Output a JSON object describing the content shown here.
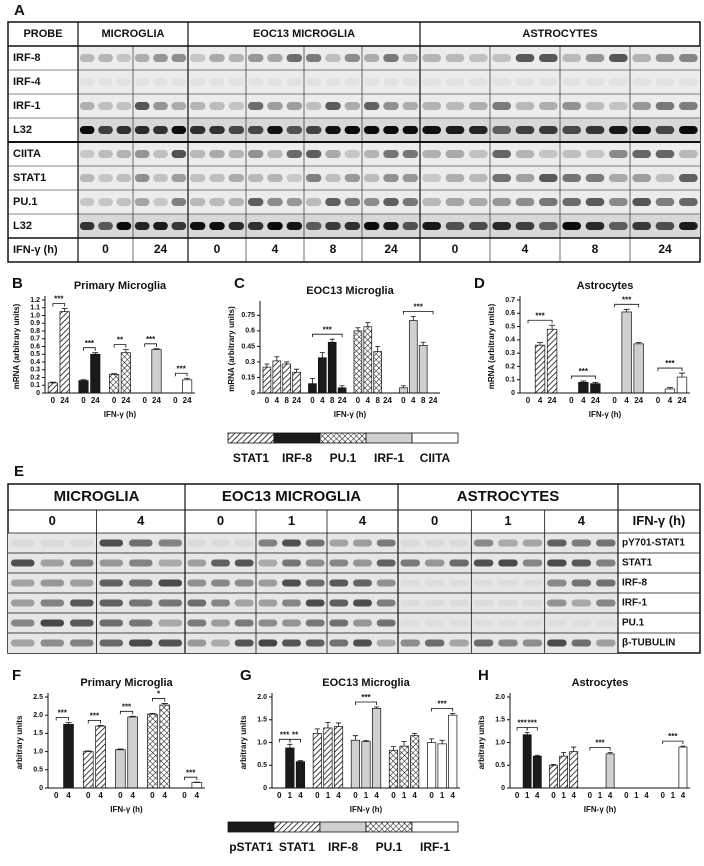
{
  "figure": {
    "blot_a": {
      "panel": "A",
      "probe_header": "PROBE",
      "cell_types": [
        "MICROGLIA",
        "EOC13 MICROGLIA",
        "ASTROCYTES"
      ],
      "probes": [
        "IRF-8",
        "IRF-4",
        "IRF-1",
        "L32",
        "CIITA",
        "STAT1",
        "PU.1",
        "L32"
      ],
      "time_label": "IFN-γ (h)",
      "times": [
        [
          "0",
          "24"
        ],
        [
          "0",
          "4",
          "8",
          "24"
        ],
        [
          "0",
          "4",
          "8",
          "24"
        ]
      ]
    },
    "blot_e": {
      "panel": "E",
      "cell_types": [
        "MICROGLIA",
        "EOC13 MICROGLIA",
        "ASTROCYTES"
      ],
      "time_label": "IFN-γ (h)",
      "times": [
        [
          "0",
          "4"
        ],
        [
          "0",
          "1",
          "4"
        ],
        [
          "0",
          "1",
          "4"
        ]
      ],
      "proteins": [
        "pY701-STAT1",
        "STAT1",
        "IRF-8",
        "IRF-1",
        "PU.1",
        "β-TUBULIN"
      ]
    },
    "legend_mrna": {
      "items": [
        {
          "name": "STAT1",
          "fill": "diagonal"
        },
        {
          "name": "IRF-8",
          "fill": "#1a1a1a"
        },
        {
          "name": "PU.1",
          "fill": "crosshatch"
        },
        {
          "name": "IRF-1",
          "fill": "#d0d0d0"
        },
        {
          "name": "CIITA",
          "fill": "#ffffff"
        }
      ]
    },
    "legend_protein": {
      "items": [
        {
          "name": "pSTAT1",
          "fill": "#1a1a1a"
        },
        {
          "name": "STAT1",
          "fill": "diagonal"
        },
        {
          "name": "IRF-8",
          "fill": "#d0d0d0"
        },
        {
          "name": "PU.1",
          "fill": "crosshatch"
        },
        {
          "name": "IRF-1",
          "fill": "#ffffff"
        }
      ]
    }
  },
  "chart_data": [
    {
      "type": "bar",
      "panel": "B",
      "title": "Primary Microglia",
      "ylabel": "mRNA (arbitrary units)",
      "xlabel": "IFN-γ (h)",
      "ylim": [
        0,
        1.2
      ],
      "yticks": [
        0,
        0.1,
        0.2,
        0.3,
        0.4,
        0.5,
        0.6,
        0.7,
        0.8,
        0.9,
        {
          "value": 1,
          "label": "1.0"
        },
        1.1,
        1.2
      ],
      "series": [
        {
          "fill": "diagonal",
          "categories": [
            "0",
            "24"
          ],
          "values": [
            0.13,
            1.05
          ],
          "errors": [
            0.01,
            0.04
          ],
          "significance": [
            "***"
          ]
        },
        {
          "fill": "#1a1a1a",
          "categories": [
            "0",
            "24"
          ],
          "values": [
            0.16,
            0.5
          ],
          "errors": [
            0.01,
            0.02
          ],
          "significance": [
            "***"
          ]
        },
        {
          "fill": "crosshatch",
          "categories": [
            "0",
            "24"
          ],
          "values": [
            0.24,
            0.52
          ],
          "errors": [
            0.01,
            0.04
          ],
          "significance": [
            "**"
          ]
        },
        {
          "fill": "#d0d0d0",
          "categories": [
            "0",
            "24"
          ],
          "values": [
            null,
            0.56
          ],
          "errors": [
            null,
            0.01
          ],
          "significance": [
            "***"
          ]
        },
        {
          "fill": "#ffffff",
          "categories": [
            "0",
            "24"
          ],
          "values": [
            null,
            0.17
          ],
          "errors": [
            null,
            0.02
          ],
          "significance": [
            "***"
          ]
        }
      ]
    },
    {
      "type": "bar",
      "panel": "C",
      "title": "EOC13 Microglia",
      "ylabel": "mRNA (arbitrary units)",
      "xlabel": "IFN-γ (h)",
      "ylim": [
        0,
        0.85
      ],
      "yticks": [
        0,
        0.15,
        0.3,
        0.45,
        0.6,
        0.75
      ],
      "series": [
        {
          "fill": "diagonal",
          "categories": [
            "0",
            "4",
            "8",
            "24"
          ],
          "values": [
            0.25,
            0.31,
            0.28,
            0.2
          ],
          "errors": [
            0.03,
            0.04,
            0.02,
            0.03
          ]
        },
        {
          "fill": "#1a1a1a",
          "categories": [
            "0",
            "4",
            "8",
            "24"
          ],
          "values": [
            0.09,
            0.34,
            0.49,
            0.05
          ],
          "errors": [
            0.05,
            0.05,
            0.03,
            0.02
          ],
          "significance": [
            "***"
          ]
        },
        {
          "fill": "crosshatch",
          "categories": [
            "0",
            "4",
            "8",
            "24"
          ],
          "values": [
            0.6,
            0.64,
            0.4,
            null
          ],
          "errors": [
            0.03,
            0.04,
            0.05,
            null
          ]
        },
        {
          "fill": "#d0d0d0",
          "categories": [
            "0",
            "4",
            "8",
            "24"
          ],
          "values": [
            0.05,
            0.7,
            0.46,
            null
          ],
          "errors": [
            0.02,
            0.04,
            0.03,
            null
          ],
          "significance": [
            "***"
          ]
        }
      ]
    },
    {
      "type": "bar",
      "panel": "D",
      "title": "Astrocytes",
      "ylabel": "mRNA (arbitrary units)",
      "xlabel": "IFN-γ (h)",
      "ylim": [
        0,
        0.7
      ],
      "yticks": [
        0,
        0.1,
        0.2,
        0.3,
        0.4,
        0.5,
        0.6,
        0.7
      ],
      "series": [
        {
          "fill": "diagonal",
          "categories": [
            "0",
            "4",
            "24"
          ],
          "values": [
            null,
            0.36,
            0.48
          ],
          "errors": [
            null,
            0.02,
            0.03
          ],
          "significance": [
            "***"
          ]
        },
        {
          "fill": "#1a1a1a",
          "categories": [
            "0",
            "4",
            "24"
          ],
          "values": [
            null,
            0.08,
            0.07
          ],
          "errors": [
            null,
            0.01,
            0.01
          ],
          "significance": [
            "***"
          ]
        },
        {
          "fill": "#d0d0d0",
          "categories": [
            "0",
            "4",
            "24"
          ],
          "values": [
            null,
            0.61,
            0.37
          ],
          "errors": [
            null,
            0.02,
            0.01
          ],
          "significance": [
            "***"
          ]
        },
        {
          "fill": "#ffffff",
          "categories": [
            "0",
            "4",
            "24"
          ],
          "values": [
            null,
            0.03,
            0.12
          ],
          "errors": [
            null,
            0.01,
            0.03
          ],
          "significance": [
            "***"
          ]
        }
      ]
    },
    {
      "type": "bar",
      "panel": "F",
      "title": "Primary Microglia",
      "ylabel": "arbitrary units",
      "xlabel": "IFN-γ (h)",
      "ylim": [
        0,
        2.5
      ],
      "yticks": [
        0,
        0.5,
        {
          "value": 1,
          "label": "1.0"
        },
        1.5,
        {
          "value": 2,
          "label": "2.0"
        },
        2.5
      ],
      "series": [
        {
          "fill": "#1a1a1a",
          "categories": [
            "0",
            "4"
          ],
          "values": [
            null,
            1.75
          ],
          "errors": [
            null,
            0.05
          ],
          "significance": [
            "***"
          ]
        },
        {
          "fill": "diagonal",
          "categories": [
            "0",
            "4"
          ],
          "values": [
            1.0,
            1.7
          ],
          "errors": [
            0.02,
            0.02
          ],
          "significance": [
            "***"
          ]
        },
        {
          "fill": "#d0d0d0",
          "categories": [
            "0",
            "4"
          ],
          "values": [
            1.05,
            1.95
          ],
          "errors": [
            0.02,
            0.02
          ],
          "significance": [
            "***"
          ]
        },
        {
          "fill": "crosshatch",
          "categories": [
            "0",
            "4"
          ],
          "values": [
            2.03,
            2.28
          ],
          "errors": [
            0.02,
            0.04
          ],
          "significance": [
            "*"
          ]
        },
        {
          "fill": "#ffffff",
          "categories": [
            "0",
            "4"
          ],
          "values": [
            null,
            0.15
          ],
          "errors": [
            null,
            0.01
          ],
          "significance": [
            "***"
          ]
        }
      ]
    },
    {
      "type": "bar",
      "panel": "G",
      "title": "EOC13 Microglia",
      "ylabel": "arbitrary units",
      "xlabel": "IFN-γ (h)",
      "ylim": [
        0,
        2
      ],
      "yticks": [
        0,
        0.5,
        {
          "value": 1,
          "label": "1.0"
        },
        1.5,
        {
          "value": 2,
          "label": "2.0"
        }
      ],
      "series": [
        {
          "fill": "#1a1a1a",
          "categories": [
            "0",
            "1",
            "4"
          ],
          "values": [
            null,
            0.88,
            0.58
          ],
          "errors": [
            null,
            0.08,
            0.02
          ],
          "significance": [
            "***",
            "**"
          ]
        },
        {
          "fill": "diagonal",
          "categories": [
            "0",
            "1",
            "4"
          ],
          "values": [
            1.2,
            1.32,
            1.35
          ],
          "errors": [
            0.1,
            0.12,
            0.08
          ]
        },
        {
          "fill": "#d0d0d0",
          "categories": [
            "0",
            "1",
            "4"
          ],
          "values": [
            1.05,
            1.02,
            1.75
          ],
          "errors": [
            0.1,
            0.02,
            0.03
          ],
          "significance": [
            "***"
          ]
        },
        {
          "fill": "crosshatch",
          "categories": [
            "0",
            "1",
            "4"
          ],
          "values": [
            0.83,
            0.92,
            1.15
          ],
          "errors": [
            0.08,
            0.1,
            0.05
          ]
        },
        {
          "fill": "#ffffff",
          "categories": [
            "0",
            "1",
            "4"
          ],
          "values": [
            1.0,
            0.97,
            1.6
          ],
          "errors": [
            0.08,
            0.08,
            0.04
          ],
          "significance": [
            "***"
          ]
        }
      ]
    },
    {
      "type": "bar",
      "panel": "H",
      "title": "Astrocytes",
      "ylabel": "arbitrary units",
      "xlabel": "IFN-γ (h)",
      "ylim": [
        0,
        2
      ],
      "yticks": [
        0,
        0.5,
        {
          "value": 1,
          "label": "1.0"
        },
        1.5,
        {
          "value": 2,
          "label": "2.0"
        }
      ],
      "series": [
        {
          "fill": "#1a1a1a",
          "categories": [
            "0",
            "1",
            "4"
          ],
          "values": [
            null,
            1.17,
            0.7
          ],
          "errors": [
            null,
            0.05,
            0.02
          ],
          "significance": [
            "***",
            "***"
          ]
        },
        {
          "fill": "diagonal",
          "categories": [
            "0",
            "1",
            "4"
          ],
          "values": [
            0.5,
            0.7,
            0.8
          ],
          "errors": [
            0.02,
            0.08,
            0.1
          ]
        },
        {
          "fill": "#d0d0d0",
          "categories": [
            "0",
            "1",
            "4"
          ],
          "values": [
            null,
            null,
            0.75
          ],
          "errors": [
            null,
            null,
            0.03
          ],
          "significance": [
            "***"
          ]
        },
        {
          "fill": "crosshatch",
          "categories": [
            "0",
            "1",
            "4"
          ],
          "values": [
            null,
            null,
            null
          ],
          "errors": [
            null,
            null,
            null
          ]
        },
        {
          "fill": "#ffffff",
          "categories": [
            "0",
            "1",
            "4"
          ],
          "values": [
            null,
            null,
            0.9
          ],
          "errors": [
            null,
            null,
            0.02
          ],
          "significance": [
            "***"
          ]
        }
      ]
    }
  ]
}
